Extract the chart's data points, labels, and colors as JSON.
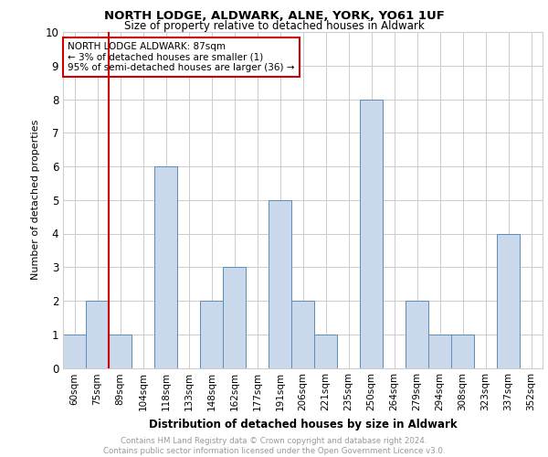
{
  "title1": "NORTH LODGE, ALDWARK, ALNE, YORK, YO61 1UF",
  "title2": "Size of property relative to detached houses in Aldwark",
  "xlabel": "Distribution of detached houses by size in Aldwark",
  "ylabel": "Number of detached properties",
  "categories": [
    "60sqm",
    "75sqm",
    "89sqm",
    "104sqm",
    "118sqm",
    "133sqm",
    "148sqm",
    "162sqm",
    "177sqm",
    "191sqm",
    "206sqm",
    "221sqm",
    "235sqm",
    "250sqm",
    "264sqm",
    "279sqm",
    "294sqm",
    "308sqm",
    "323sqm",
    "337sqm",
    "352sqm"
  ],
  "values": [
    1,
    2,
    1,
    0,
    6,
    0,
    2,
    3,
    0,
    5,
    2,
    1,
    0,
    8,
    0,
    2,
    1,
    1,
    0,
    4,
    0
  ],
  "bar_color": "#c9d9eb",
  "bar_edge_color": "#5b8db8",
  "vline_x_index": 2,
  "vline_color": "#cc0000",
  "annotation_box_text": "NORTH LODGE ALDWARK: 87sqm\n← 3% of detached houses are smaller (1)\n95% of semi-detached houses are larger (36) →",
  "annotation_box_color": "#cc0000",
  "ylim": [
    0,
    10
  ],
  "yticks": [
    0,
    1,
    2,
    3,
    4,
    5,
    6,
    7,
    8,
    9,
    10
  ],
  "grid_color": "#cccccc",
  "background_color": "#ffffff",
  "footer_line1": "Contains HM Land Registry data © Crown copyright and database right 2024.",
  "footer_line2": "Contains public sector information licensed under the Open Government Licence v3.0.",
  "footer_color": "#999999"
}
